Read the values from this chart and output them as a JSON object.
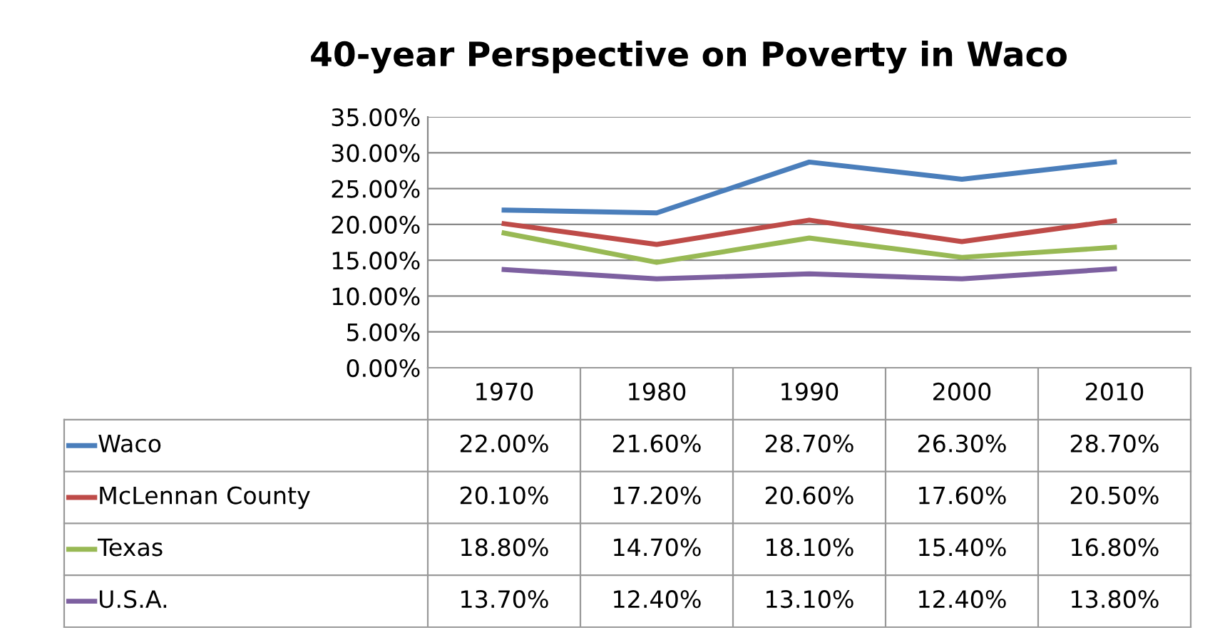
{
  "chart_data": {
    "type": "line",
    "title": "40-year Perspective on Poverty in Waco",
    "categories": [
      "1970",
      "1980",
      "1990",
      "2000",
      "2010"
    ],
    "series": [
      {
        "name": "Waco",
        "color": "#4a7ebb",
        "values": [
          22.0,
          21.6,
          28.7,
          26.3,
          28.7
        ],
        "value_labels": [
          "22.00%",
          "21.60%",
          "28.70%",
          "26.30%",
          "28.70%"
        ]
      },
      {
        "name": "McLennan County",
        "color": "#be4b48",
        "values": [
          20.1,
          17.2,
          20.6,
          17.6,
          20.5
        ],
        "value_labels": [
          "20.10%",
          "17.20%",
          "20.60%",
          "17.60%",
          "20.50%"
        ]
      },
      {
        "name": "Texas",
        "color": "#98b954",
        "values": [
          18.8,
          14.7,
          18.1,
          15.4,
          16.8
        ],
        "value_labels": [
          "18.80%",
          "14.70%",
          "18.10%",
          "15.40%",
          "16.80%"
        ]
      },
      {
        "name": "U.S.A.",
        "color": "#7d60a0",
        "values": [
          13.7,
          12.4,
          13.1,
          12.4,
          13.8
        ],
        "value_labels": [
          "13.70%",
          "12.40%",
          "13.10%",
          "12.40%",
          "13.80%"
        ]
      }
    ],
    "ylim": [
      0,
      35
    ],
    "yticks": [
      {
        "value": 0,
        "label": "0.00%"
      },
      {
        "value": 5,
        "label": "5.00%"
      },
      {
        "value": 10,
        "label": "10.00%"
      },
      {
        "value": 15,
        "label": "15.00%"
      },
      {
        "value": 20,
        "label": "20.00%"
      },
      {
        "value": 25,
        "label": "25.00%"
      },
      {
        "value": 30,
        "label": "30.00%"
      },
      {
        "value": 35,
        "label": "35.00%"
      }
    ],
    "grid": "y",
    "legend": "bottom left",
    "marker": "none",
    "line_style": "solid"
  }
}
